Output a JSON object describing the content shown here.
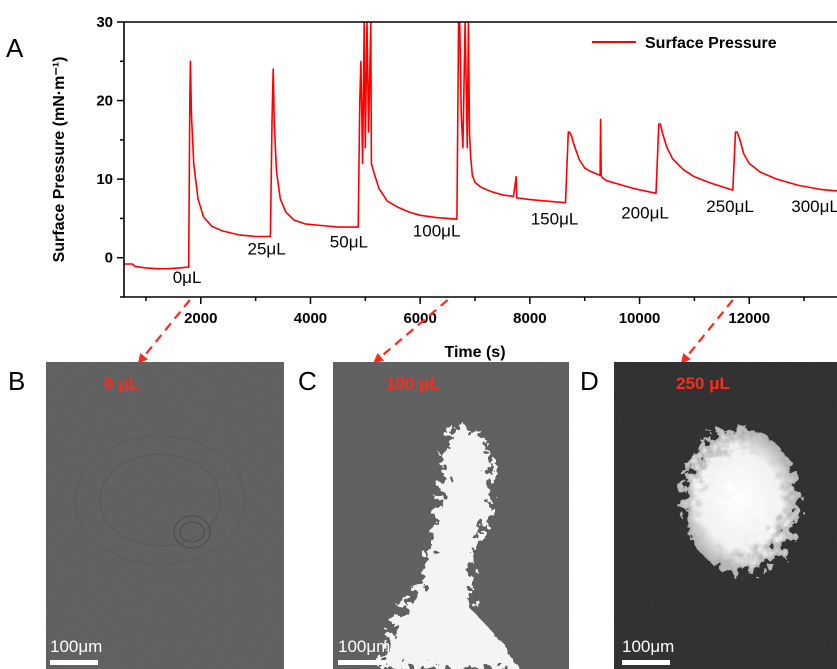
{
  "chart_data": {
    "type": "line",
    "panel_label": "A",
    "xlabel": "Time (s)",
    "ylabel": "Surface Pressure (mN·m⁻¹)",
    "xlim": [
      600,
      13600
    ],
    "ylim": [
      -5,
      30
    ],
    "xticks": [
      2000,
      4000,
      6000,
      8000,
      10000,
      12000
    ],
    "yticks": [
      0,
      10,
      20,
      30
    ],
    "legend": {
      "label": "Surface Pressure",
      "position": "top-right"
    },
    "series": [
      {
        "name": "Surface Pressure",
        "color": "#ff0000",
        "x": [
          600,
          750,
          800,
          1000,
          1200,
          1400,
          1600,
          1780,
          1800,
          1810,
          1830,
          1870,
          1950,
          2050,
          2200,
          2400,
          2700,
          3000,
          3270,
          3300,
          3320,
          3340,
          3380,
          3450,
          3550,
          3700,
          3900,
          4200,
          4500,
          4870,
          4900,
          4920,
          4950,
          4980,
          5000,
          5030,
          5060,
          5100,
          5110,
          5150,
          5250,
          5400,
          5600,
          5800,
          6000,
          6300,
          6670,
          6700,
          6720,
          6750,
          6780,
          6820,
          6860,
          6880,
          6900,
          6920,
          6950,
          7000,
          7100,
          7300,
          7500,
          7700,
          7750,
          7760,
          7780,
          8000,
          8300,
          8650,
          8700,
          8720,
          8760,
          8800,
          8900,
          9000,
          9100,
          9200,
          9280,
          9290,
          9300,
          9320,
          9400,
          9600,
          9900,
          10300,
          10350,
          10380,
          10420,
          10500,
          10600,
          10800,
          11000,
          11300,
          11700,
          11750,
          11780,
          11830,
          11900,
          12000,
          12200,
          12500,
          12900,
          13300,
          13600
        ],
        "y": [
          -0.8,
          -0.8,
          -1.1,
          -1.3,
          -1.4,
          -1.4,
          -1.3,
          -1.2,
          20,
          25,
          18,
          12,
          7.5,
          5.2,
          4.0,
          3.4,
          2.9,
          2.7,
          2.7,
          18,
          24,
          17,
          11,
          7.5,
          5.8,
          4.8,
          4.3,
          4.1,
          3.9,
          3.9,
          20,
          25,
          12,
          30,
          14,
          30,
          16,
          30,
          12,
          11,
          8.8,
          7.2,
          6.4,
          5.8,
          5.4,
          5.1,
          4.9,
          30,
          30,
          18,
          14,
          30,
          14,
          30,
          16,
          13,
          10.5,
          9.6,
          9,
          8.4,
          8.0,
          7.8,
          10.3,
          7.6,
          7.6,
          7.4,
          7.2,
          7.0,
          16,
          16,
          15.5,
          14.5,
          12.5,
          11.4,
          11,
          10.7,
          10.5,
          17.6,
          10.4,
          10.2,
          9.8,
          9.4,
          8.8,
          8.2,
          17,
          17,
          15.8,
          14,
          12.6,
          11.2,
          10.3,
          9.5,
          8.6,
          16,
          16,
          15,
          13.2,
          12,
          10.9,
          10,
          9.2,
          8.7,
          8.5
        ]
      }
    ],
    "annotations": [
      {
        "text": "0μL",
        "x": 1750,
        "y": -3.2
      },
      {
        "text": "25μL",
        "x": 3200,
        "y": 0.4
      },
      {
        "text": "50μL",
        "x": 4700,
        "y": 1.3
      },
      {
        "text": "100μL",
        "x": 6300,
        "y": 2.7
      },
      {
        "text": "150μL",
        "x": 8450,
        "y": 4.2
      },
      {
        "text": "200μL",
        "x": 10100,
        "y": 5.0
      },
      {
        "text": "250μL",
        "x": 11650,
        "y": 5.8
      },
      {
        "text": "300μL",
        "x": 13200,
        "y": 5.8
      }
    ]
  },
  "images": [
    {
      "panel": "B",
      "label": "0 μL",
      "scale": "100μm",
      "time": 1800
    },
    {
      "panel": "C",
      "label": "100 μL",
      "scale": "100μm",
      "time": 6500
    },
    {
      "panel": "D",
      "label": "250 μL",
      "scale": "100μm",
      "time": 11700
    }
  ],
  "colors": {
    "series": "#ff0000",
    "arrows": "#ff2a1a",
    "image_label": "#ff2a1a"
  }
}
